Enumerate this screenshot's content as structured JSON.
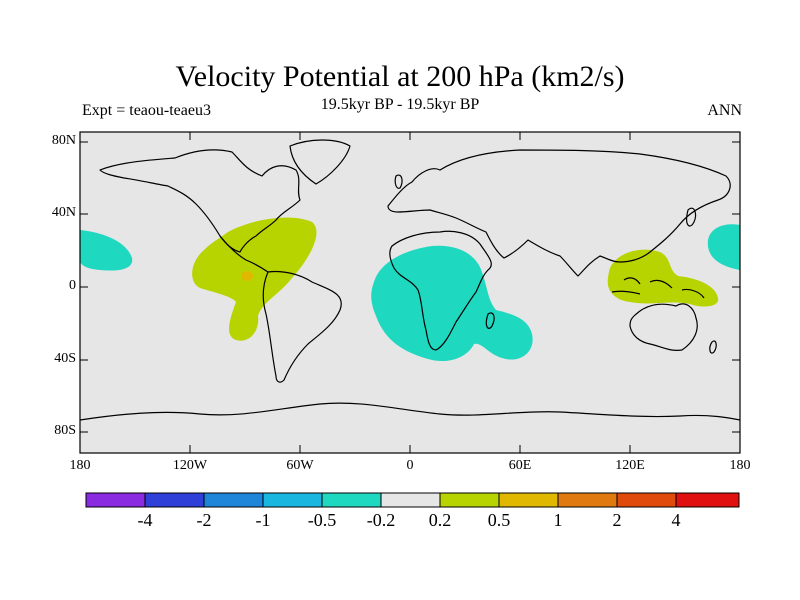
{
  "title": "Velocity Potential at 200 hPa (km2/s)",
  "subtitle": "19.5kyr BP - 19.5kyr BP",
  "left_label": "Expt = teaou-teaeu3",
  "right_label": "ANN",
  "lat_ticks": [
    "80N",
    "40N",
    "0",
    "40S",
    "80S"
  ],
  "lon_ticks": [
    "180",
    "120W",
    "60W",
    "0",
    "60E",
    "120E",
    "180"
  ],
  "colorbar": {
    "levels": [
      "-4",
      "-2",
      "-1",
      "-0.5",
      "-0.2",
      "0.2",
      "0.5",
      "1",
      "2",
      "4"
    ],
    "colors": [
      "#8a2be2",
      "#2f3fd8",
      "#1e86d8",
      "#19b6e0",
      "#1fd8c0",
      "#e6e6e6",
      "#b8d400",
      "#e0b800",
      "#e07a10",
      "#e04a0a",
      "#e01010"
    ]
  },
  "chart_data": {
    "type": "filled-contour map",
    "variable": "Velocity Potential at 200 hPa",
    "units": "km2/s",
    "xlim": [
      -180,
      180
    ],
    "ylim": [
      -90,
      90
    ],
    "features": [
      {
        "region": "Central Pacific near 160W, 5N-15N",
        "range": "-0.5 to -0.2"
      },
      {
        "region": "Central America / Caribbean / N. South America",
        "range": "0.2 to 0.5",
        "max_spot": "0.5 to 1 near 90W, 5N"
      },
      {
        "region": "Southern Africa / South Atlantic / SW Indian Ocean",
        "range": "-0.5 to -0.2"
      },
      {
        "region": "Maritime Continent / Western Pacific",
        "range": "0.2 to 0.5"
      },
      {
        "region": "NW Pacific near 170E, 20N",
        "range": "-0.5 to -0.2"
      }
    ]
  }
}
